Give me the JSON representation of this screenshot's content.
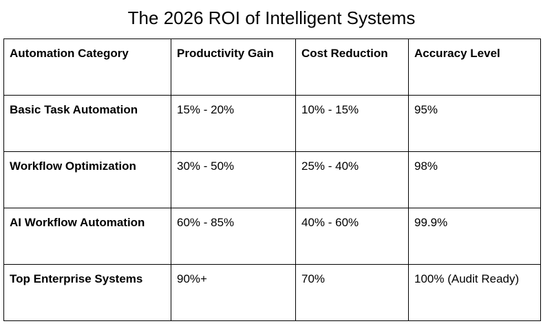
{
  "title": "The 2026 ROI of Intelligent Systems",
  "table": {
    "headers": [
      "Automation Category",
      "Productivity Gain",
      "Cost Reduction",
      "Accuracy Level"
    ],
    "rows": [
      [
        "Basic Task Automation",
        "15% - 20%",
        "10% - 15%",
        "95%"
      ],
      [
        "Workflow Optimization",
        "30% - 50%",
        "25% - 40%",
        "98%"
      ],
      [
        "AI Workflow Automation",
        "60% - 85%",
        "40% - 60%",
        "99.9%"
      ],
      [
        "Top Enterprise Systems",
        "90%+",
        "70%",
        "100% (Audit Ready)"
      ]
    ]
  }
}
